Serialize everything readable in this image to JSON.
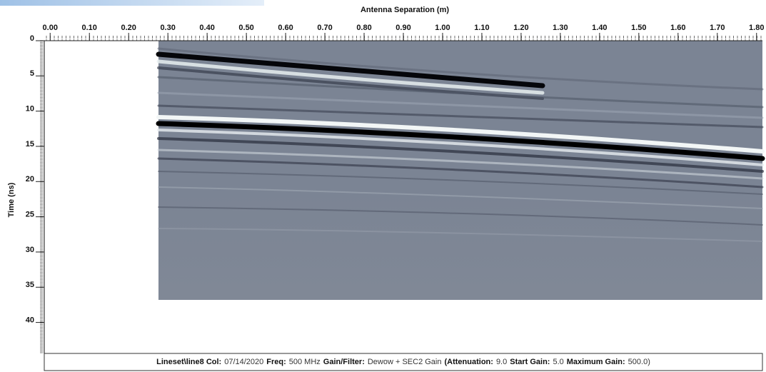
{
  "chart_data": {
    "type": "radargram",
    "x_label": "Antenna Separation (m)",
    "y_label": "Time (ns)",
    "xlim": [
      -0.015,
      1.815
    ],
    "ylim": [
      0,
      44.4
    ],
    "xticks": [
      {
        "value": 0,
        "label": "0.00"
      },
      {
        "value": 0.1,
        "label": "0.10"
      },
      {
        "value": 0.2,
        "label": "0.20"
      },
      {
        "value": 0.3,
        "label": "0.30"
      },
      {
        "value": 0.4,
        "label": "0.40"
      },
      {
        "value": 0.5,
        "label": "0.50"
      },
      {
        "value": 0.6,
        "label": "0.60"
      },
      {
        "value": 0.7,
        "label": "0.70"
      },
      {
        "value": 0.8,
        "label": "0.80"
      },
      {
        "value": 0.9,
        "label": "0.90"
      },
      {
        "value": 1,
        "label": "1.00"
      },
      {
        "value": 1.1,
        "label": "1.10"
      },
      {
        "value": 1.2,
        "label": "1.20"
      },
      {
        "value": 1.3,
        "label": "1.30"
      },
      {
        "value": 1.4,
        "label": "1.40"
      },
      {
        "value": 1.5,
        "label": "1.50"
      },
      {
        "value": 1.6,
        "label": "1.60"
      },
      {
        "value": 1.7,
        "label": "1.70"
      },
      {
        "value": 1.8,
        "label": "1.80"
      }
    ],
    "yticks": [
      0,
      5,
      10,
      15,
      20,
      25,
      30,
      35,
      40
    ],
    "footer": [
      {
        "label": "Lineset\\line8  Col:",
        "value": "07/14/2020"
      },
      {
        "label": "Freq:",
        "value": "500 MHz"
      },
      {
        "label": "Gain/Filter:",
        "value": "Dewow + SEC2 Gain"
      },
      {
        "label": "(Attenuation:",
        "value": "9.0"
      },
      {
        "label": "Start Gain:",
        "value": "5.0"
      },
      {
        "label": "Maximum Gain:",
        "value": "500.0)"
      }
    ]
  }
}
